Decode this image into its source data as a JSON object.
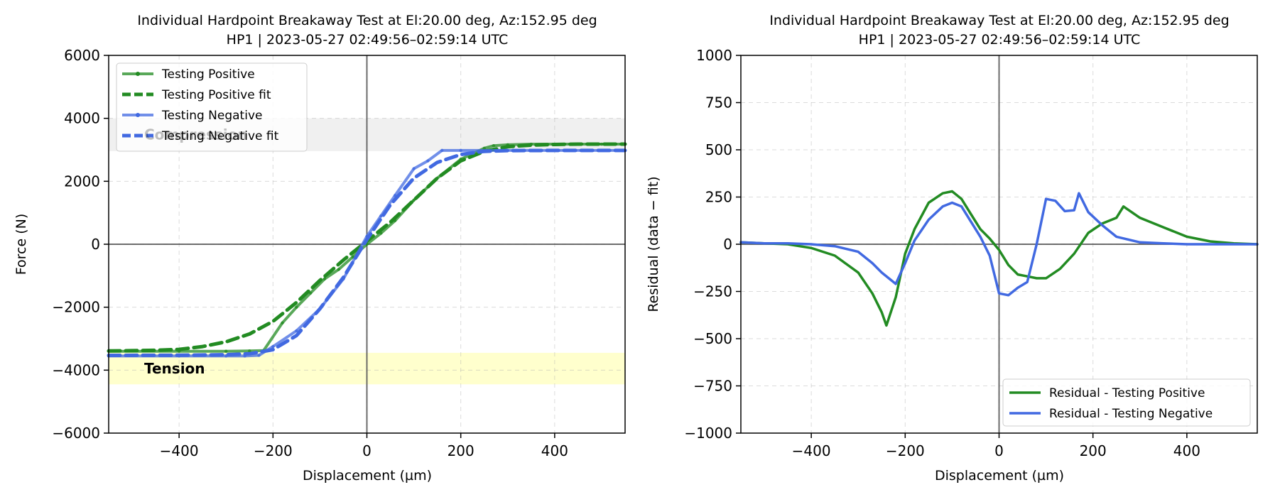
{
  "chart_data": [
    {
      "type": "line",
      "title": "Individual Hardpoint Breakaway Test at El:20.00 deg, Az:152.95 deg",
      "subtitle": "HP1 | 2023-05-27 02:49:56–02:59:14 UTC",
      "xlabel": "Displacement (µm)",
      "ylabel": "Force (N)",
      "xlim": [
        -550,
        550
      ],
      "ylim": [
        -6000,
        6000
      ],
      "xticks": [
        -400,
        -200,
        0,
        200,
        400
      ],
      "yticks": [
        -6000,
        -4000,
        -2000,
        0,
        2000,
        4000,
        6000
      ],
      "grid": true,
      "legend_position": "upper-left",
      "bands": [
        {
          "label": "Compression",
          "y0": 2960,
          "y1": 4000,
          "color": "#d9d9d9"
        },
        {
          "label": "Tension",
          "y0": -4450,
          "y1": -3450,
          "color": "#ffffc8"
        }
      ],
      "series": [
        {
          "name": "Testing Positive",
          "style": "solid-marker",
          "color": "#228b22",
          "x": [
            -550,
            -400,
            -300,
            -250,
            -220,
            -180,
            -150,
            -120,
            -90,
            -60,
            -30,
            0,
            30,
            60,
            100,
            150,
            200,
            250,
            270,
            300,
            350,
            400,
            450,
            500,
            550
          ],
          "y": [
            -3400,
            -3400,
            -3400,
            -3390,
            -3380,
            -2500,
            -2000,
            -1550,
            -1100,
            -800,
            -400,
            0,
            350,
            750,
            1400,
            2100,
            2700,
            3050,
            3130,
            3160,
            3180,
            3180,
            3180,
            3180,
            3180
          ]
        },
        {
          "name": "Testing Positive fit",
          "style": "dashed",
          "color": "#228b22",
          "x": [
            -550,
            -450,
            -400,
            -350,
            -300,
            -250,
            -200,
            -150,
            -100,
            -50,
            0,
            50,
            100,
            150,
            200,
            250,
            300,
            350,
            400,
            450,
            500,
            550
          ],
          "y": [
            -3390,
            -3370,
            -3340,
            -3250,
            -3100,
            -2850,
            -2450,
            -1850,
            -1150,
            -500,
            100,
            700,
            1400,
            2100,
            2650,
            2950,
            3100,
            3150,
            3170,
            3180,
            3180,
            3180
          ]
        },
        {
          "name": "Testing Negative",
          "style": "solid-marker",
          "color": "#4169e1",
          "x": [
            -550,
            -400,
            -300,
            -260,
            -230,
            -200,
            -150,
            -100,
            -50,
            0,
            30,
            60,
            100,
            130,
            160,
            200,
            300,
            400,
            550
          ],
          "y": [
            -3550,
            -3550,
            -3550,
            -3550,
            -3530,
            -3250,
            -2750,
            -2050,
            -1100,
            250,
            900,
            1550,
            2400,
            2650,
            2980,
            2980,
            2980,
            2980,
            2980
          ]
        },
        {
          "name": "Testing Negative fit",
          "style": "dashed",
          "color": "#4169e1",
          "x": [
            -550,
            -400,
            -300,
            -250,
            -200,
            -150,
            -100,
            -50,
            0,
            50,
            100,
            150,
            200,
            250,
            300,
            400,
            550
          ],
          "y": [
            -3530,
            -3525,
            -3510,
            -3480,
            -3350,
            -2900,
            -2050,
            -1050,
            150,
            1250,
            2100,
            2600,
            2850,
            2950,
            2975,
            2980,
            2980
          ]
        }
      ]
    },
    {
      "type": "line",
      "title": "Individual Hardpoint Breakaway Test at El:20.00 deg, Az:152.95 deg",
      "subtitle": "HP1 | 2023-05-27 02:49:56–02:59:14 UTC",
      "xlabel": "Displacement (µm)",
      "ylabel": "Residual (data − fit)",
      "xlim": [
        -550,
        550
      ],
      "ylim": [
        -1000,
        1000
      ],
      "xticks": [
        -400,
        -200,
        0,
        200,
        400
      ],
      "yticks": [
        -1000,
        -750,
        -500,
        -250,
        0,
        250,
        500,
        750,
        1000
      ],
      "grid": true,
      "legend_position": "lower-right",
      "series": [
        {
          "name": "Residual - Testing Positive",
          "color": "#228b22",
          "x": [
            -550,
            -500,
            -450,
            -400,
            -350,
            -300,
            -270,
            -250,
            -240,
            -220,
            -200,
            -180,
            -150,
            -120,
            -100,
            -80,
            -60,
            -40,
            -20,
            0,
            20,
            40,
            60,
            80,
            100,
            130,
            160,
            190,
            220,
            250,
            265,
            300,
            350,
            400,
            450,
            500,
            550
          ],
          "y": [
            10,
            5,
            0,
            -20,
            -60,
            -150,
            -260,
            -360,
            -430,
            -280,
            -50,
            80,
            220,
            270,
            280,
            240,
            160,
            80,
            30,
            -30,
            -110,
            -160,
            -170,
            -180,
            -180,
            -130,
            -50,
            60,
            110,
            140,
            200,
            140,
            90,
            40,
            15,
            5,
            0
          ]
        },
        {
          "name": "Residual - Testing Negative",
          "color": "#4169e1",
          "x": [
            -550,
            -500,
            -450,
            -400,
            -350,
            -300,
            -270,
            -250,
            -220,
            -200,
            -180,
            -150,
            -120,
            -100,
            -80,
            -60,
            -40,
            -20,
            0,
            20,
            40,
            60,
            80,
            100,
            120,
            140,
            160,
            170,
            190,
            220,
            250,
            300,
            350,
            400,
            450,
            500,
            550
          ],
          "y": [
            10,
            5,
            5,
            0,
            -10,
            -40,
            -100,
            -150,
            -210,
            -100,
            20,
            130,
            200,
            220,
            200,
            120,
            40,
            -60,
            -260,
            -270,
            -230,
            -200,
            0,
            240,
            230,
            175,
            180,
            270,
            170,
            100,
            40,
            10,
            5,
            0,
            0,
            0,
            0
          ]
        }
      ]
    }
  ]
}
